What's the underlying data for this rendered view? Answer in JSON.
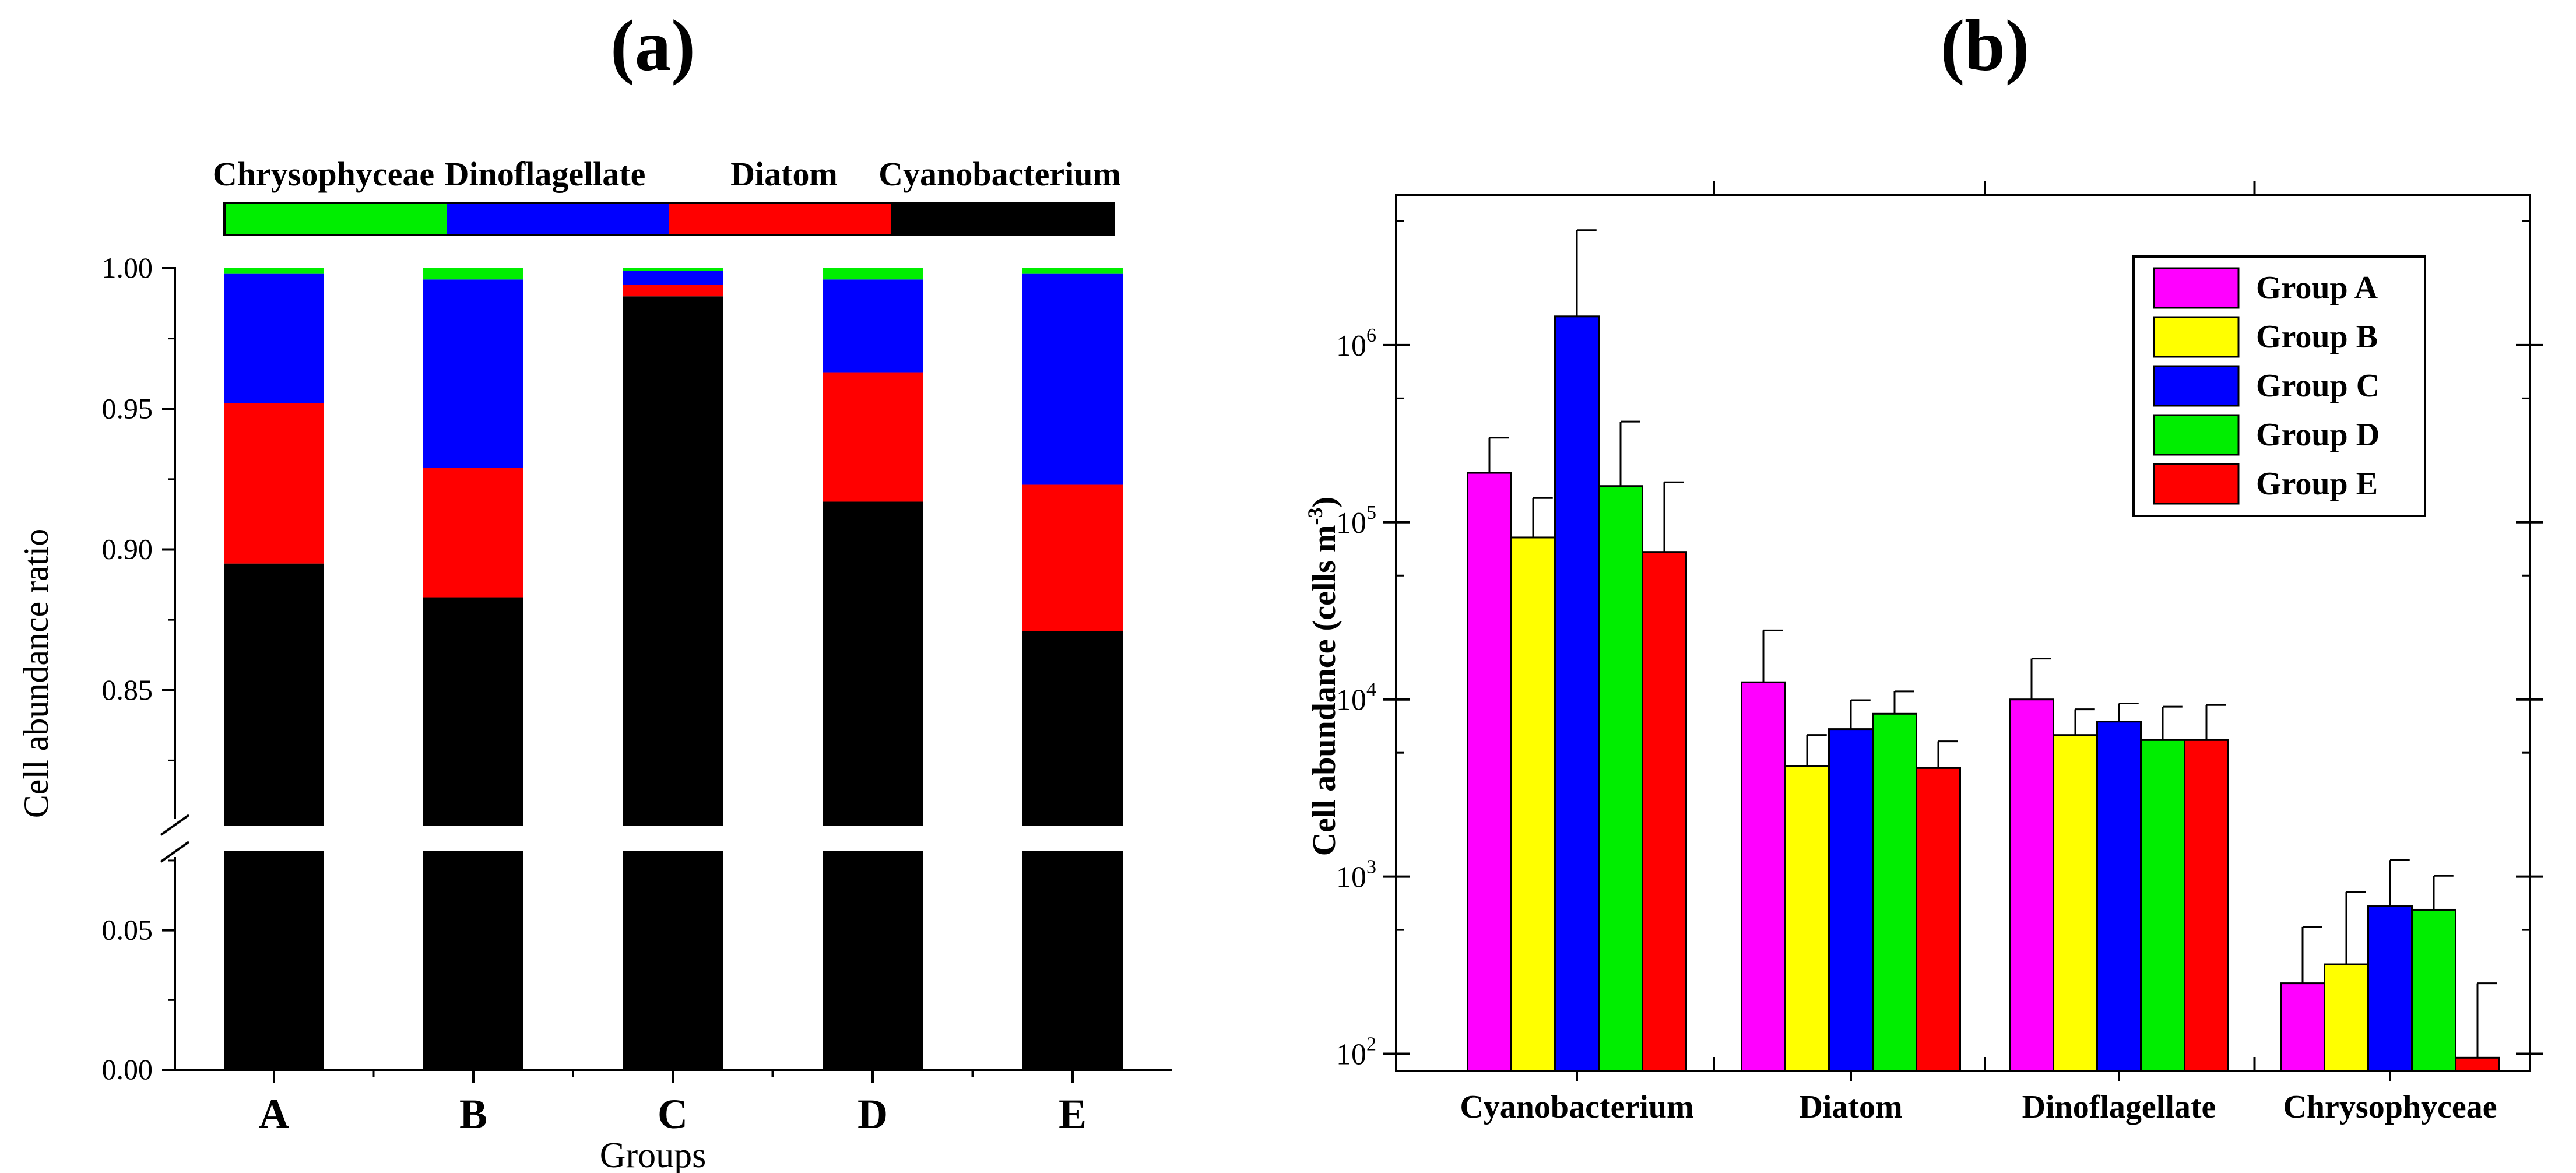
{
  "panel_a": {
    "label": "(a)",
    "legend_entries": [
      "Chrysophyceae",
      "Dinoflagellate",
      "Diatom",
      "Cyanobacterium"
    ],
    "ylabel": "Cell abundance ratio",
    "xlabel": "Groups"
  },
  "panel_b": {
    "label": "(b)",
    "ylabel": "Cell abundance (cells m",
    "ylabel_sup": "-3",
    "ylabel_close": ")"
  },
  "chart_data": [
    {
      "type": "bar",
      "stacked": true,
      "title": "(a)",
      "xlabel": "Groups",
      "ylabel": "Cell abundance ratio",
      "categories": [
        "A",
        "B",
        "C",
        "D",
        "E"
      ],
      "series": [
        {
          "name": "Cyanobacterium",
          "color": "#000000",
          "values": [
            0.895,
            0.883,
            0.99,
            0.917,
            0.871
          ]
        },
        {
          "name": "Diatom",
          "color": "#ff0000",
          "values": [
            0.057,
            0.046,
            0.004,
            0.046,
            0.052
          ]
        },
        {
          "name": "Dinoflagellate",
          "color": "#0000ff",
          "values": [
            0.046,
            0.067,
            0.005,
            0.033,
            0.075
          ]
        },
        {
          "name": "Chrysophyceae",
          "color": "#00ee00",
          "values": [
            0.002,
            0.004,
            0.001,
            0.004,
            0.002
          ]
        }
      ],
      "axis_break": [
        0.08,
        0.8
      ],
      "ylim": [
        0,
        1.0
      ],
      "yticks_lower": [
        "0.00",
        "0.05"
      ],
      "yticks_upper": [
        "0.85",
        "0.90",
        "0.95",
        "1.00"
      ],
      "legend_position": "top"
    },
    {
      "type": "bar",
      "title": "(b)",
      "xlabel": "",
      "ylabel": "Cell abundance (cells m-3)",
      "yscale": "log",
      "ylim": [
        80,
        7000000
      ],
      "categories": [
        "Cyanobacterium",
        "Diatom",
        "Dinoflagellate",
        "Chrysophyceae"
      ],
      "series": [
        {
          "name": "Group A",
          "color": "#ff00ff",
          "values": [
            190000,
            12500,
            10000,
            250
          ],
          "errors": [
            110000,
            12000,
            7000,
            270
          ]
        },
        {
          "name": "Group B",
          "color": "#ffff00",
          "values": [
            82000,
            4200,
            6300,
            320
          ],
          "errors": [
            55000,
            2100,
            2500,
            500
          ]
        },
        {
          "name": "Group C",
          "color": "#0000ff",
          "values": [
            1450000,
            6800,
            7500,
            680
          ],
          "errors": [
            3000000,
            3100,
            2000,
            560
          ]
        },
        {
          "name": "Group D",
          "color": "#00ee00",
          "values": [
            160000,
            8300,
            5900,
            650
          ],
          "errors": [
            210000,
            2800,
            3200,
            360
          ]
        },
        {
          "name": "Group E",
          "color": "#ff0000",
          "values": [
            68000,
            4100,
            5900,
            95
          ],
          "errors": [
            100000,
            1700,
            3400,
            155
          ]
        }
      ],
      "yticks": [
        {
          "base": "10",
          "exp": "2"
        },
        {
          "base": "10",
          "exp": "3"
        },
        {
          "base": "10",
          "exp": "4"
        },
        {
          "base": "10",
          "exp": "5"
        },
        {
          "base": "10",
          "exp": "6"
        }
      ],
      "legend_position": "top-right"
    }
  ]
}
